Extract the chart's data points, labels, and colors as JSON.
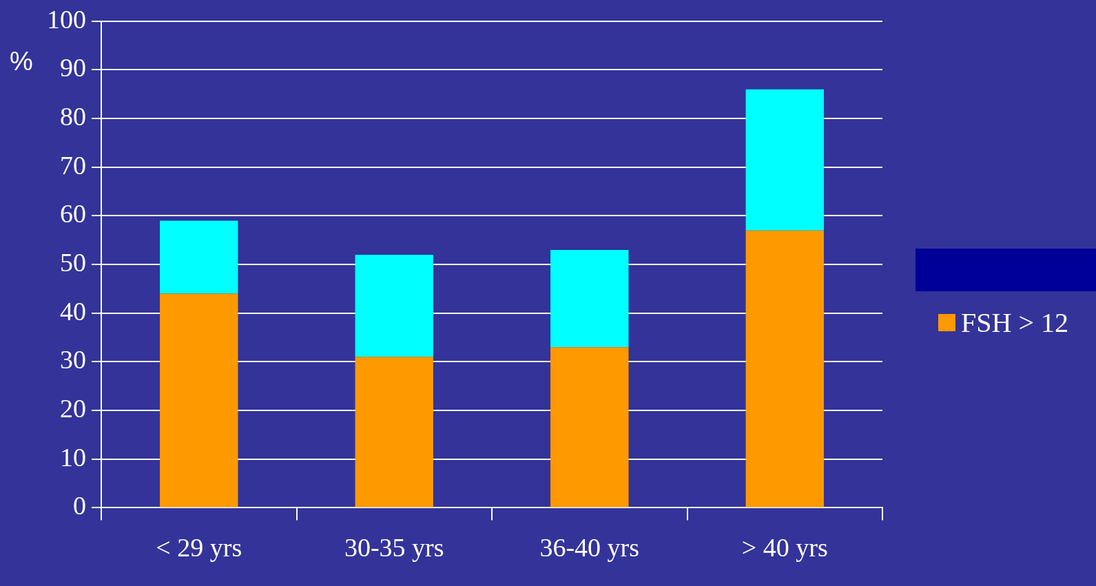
{
  "chart_data": {
    "type": "bar",
    "ylabel": "%",
    "categories": [
      "< 29 yrs",
      "30-35 yrs",
      "36-40 yrs",
      "> 40 yrs"
    ],
    "series": [
      {
        "name": "FSH > 12",
        "color": "#ff9900",
        "values": [
          44,
          31,
          33,
          57
        ]
      },
      {
        "color": "#00ffff",
        "values": [
          15,
          21,
          20,
          29
        ]
      }
    ],
    "stacked": true,
    "ylim": [
      0,
      100
    ],
    "yticks": [
      0,
      10,
      20,
      30,
      40,
      50,
      60,
      70,
      80,
      90,
      100
    ],
    "grid": "y",
    "legend": "right"
  }
}
